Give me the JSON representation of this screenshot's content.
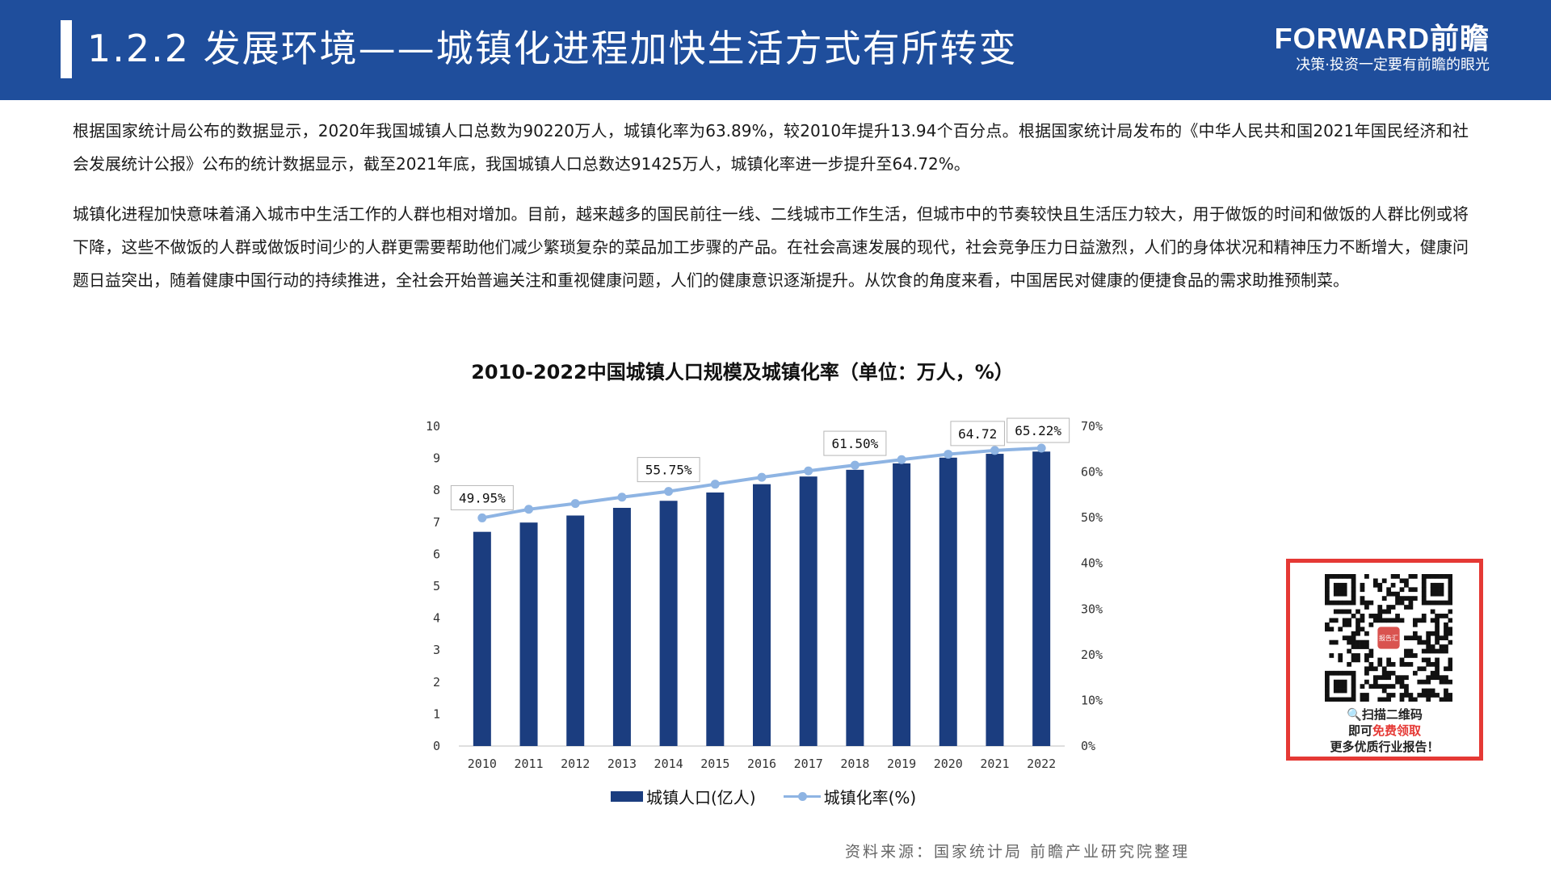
{
  "header": {
    "title": "1.2.2 发展环境——城镇化进程加快生活方式有所转变",
    "brand_name": "FORWARD前瞻",
    "brand_slogan": "决策·投资一定要有前瞻的眼光",
    "background_color": "#1f4e9c"
  },
  "paragraphs": [
    "根据国家统计局公布的数据显示，2020年我国城镇人口总数为90220万人，城镇化率为63.89%，较2010年提升13.94个百分点。根据国家统计局发布的《中华人民共和国2021年国民经济和社会发展统计公报》公布的统计数据显示，截至2021年底，我国城镇人口总数达91425万人，城镇化率进一步提升至64.72%。",
    "城镇化进程加快意味着涌入城市中生活工作的人群也相对增加。目前，越来越多的国民前往一线、二线城市工作生活，但城市中的节奏较快且生活压力较大，用于做饭的时间和做饭的人群比例或将下降，这些不做饭的人群或做饭时间少的人群更需要帮助他们减少繁琐复杂的菜品加工步骤的产品。在社会高速发展的现代，社会竞争压力日益激烈，人们的身体状况和精神压力不断增大，健康问题日益突出，随着健康中国行动的持续推进，全社会开始普遍关注和重视健康问题，人们的健康意识逐渐提升。从饮食的角度来看，中国居民对健康的便捷食品的需求助推预制菜。"
  ],
  "chart_data": {
    "type": "bar",
    "title": "2010-2022中国城镇人口规模及城镇化率（单位：万人，%）",
    "categories": [
      "2010",
      "2011",
      "2012",
      "2013",
      "2014",
      "2015",
      "2016",
      "2017",
      "2018",
      "2019",
      "2020",
      "2021",
      "2022"
    ],
    "series": [
      {
        "name": "城镇人口（亿人）",
        "type": "bar",
        "axis": "left",
        "color": "#1b3d7f",
        "values": [
          6.7,
          6.99,
          7.21,
          7.45,
          7.67,
          7.93,
          8.19,
          8.43,
          8.64,
          8.84,
          9.02,
          9.14,
          9.21
        ]
      },
      {
        "name": "城镇化率（%）",
        "type": "line",
        "axis": "right",
        "color": "#8eb4e3",
        "values": [
          49.95,
          51.83,
          53.1,
          54.49,
          55.75,
          57.33,
          58.84,
          60.24,
          61.5,
          62.71,
          63.89,
          64.72,
          65.22
        ]
      }
    ],
    "data_labels": [
      {
        "index": 0,
        "text": "49.95%"
      },
      {
        "index": 4,
        "text": "55.75%"
      },
      {
        "index": 8,
        "text": "61.50%"
      },
      {
        "index": 11,
        "text": "64.72"
      },
      {
        "index": 12,
        "text": "65.22%"
      }
    ],
    "y_left": {
      "min": 0,
      "max": 10,
      "ticks": [
        "0",
        "1",
        "2",
        "3",
        "4",
        "5",
        "6",
        "7",
        "8",
        "9",
        "10"
      ]
    },
    "y_right": {
      "min": 0,
      "max": 70,
      "ticks": [
        "0%",
        "10%",
        "20%",
        "30%",
        "40%",
        "50%",
        "60%",
        "70%"
      ]
    },
    "grid": false,
    "legend": {
      "placement": "bottom",
      "items": [
        "城镇人口(亿人)",
        "城镇化率(%)"
      ]
    }
  },
  "source": "资料来源：国家统计局 前瞻产业研究院整理",
  "qr": {
    "badge": "报告汇",
    "line1": "🔍扫描二维码",
    "line2_prefix": "即可",
    "line2_red": "免费领取",
    "line3": "更多优质行业报告！",
    "border_color": "#e53935"
  }
}
